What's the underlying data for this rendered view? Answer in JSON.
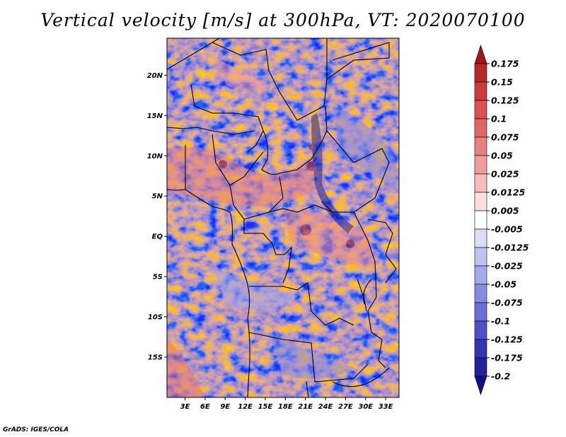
{
  "title": "Vertical velocity [m/s] at 300hPa, VT: 2020070100",
  "credit": "GrADS: IGES/COLA",
  "map": {
    "lat_labels": [
      "20N",
      "15N",
      "10N",
      "5N",
      "EQ",
      "5S",
      "10S",
      "15S"
    ],
    "lat_values": [
      20,
      15,
      10,
      5,
      0,
      -5,
      -10,
      -15
    ],
    "lon_labels": [
      "3E",
      "6E",
      "9E",
      "12E",
      "15E",
      "18E",
      "21E",
      "24E",
      "27E",
      "30E",
      "33E"
    ],
    "lon_values": [
      3,
      6,
      9,
      12,
      15,
      18,
      21,
      24,
      27,
      30,
      33
    ],
    "lat_range": [
      -20,
      24.6
    ],
    "lon_range": [
      0.3,
      35
    ]
  },
  "colorbar": {
    "labels": [
      "0.175",
      "0.15",
      "0.125",
      "0.1",
      "0.075",
      "0.05",
      "0.025",
      "0.0125",
      "0.005",
      "-0.005",
      "-0.0125",
      "-0.025",
      "-0.05",
      "-0.075",
      "-0.1",
      "-0.125",
      "-0.175",
      "-0.2"
    ],
    "colors": [
      "#a01818",
      "#b82828",
      "#cc3a3a",
      "#d85050",
      "#e06666",
      "#e88080",
      "#f09c9c",
      "#f6bcbc",
      "#fbdede",
      "#ffffff",
      "#dcdcf8",
      "#c2c2f2",
      "#a6a6ea",
      "#8a8ae2",
      "#6e6ed8",
      "#5050c8",
      "#3434b4",
      "#22229a",
      "#120e80"
    ]
  }
}
